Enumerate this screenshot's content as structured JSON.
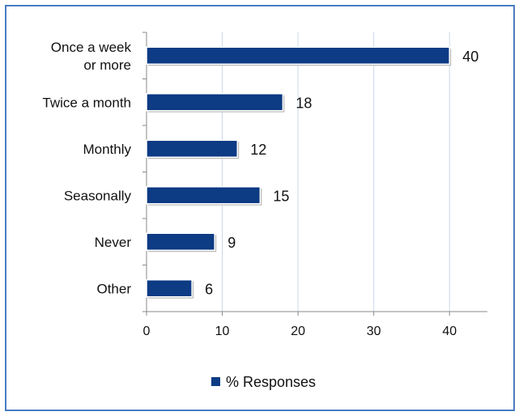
{
  "chart_data": {
    "type": "bar",
    "orientation": "horizontal",
    "categories": [
      [
        "Once a week",
        "or more"
      ],
      [
        "Twice a month"
      ],
      [
        "Monthly"
      ],
      [
        "Seasonally"
      ],
      [
        "Never"
      ],
      [
        "Other"
      ]
    ],
    "series": [
      {
        "name": "% Responses",
        "values": [
          40,
          18,
          12,
          15,
          9,
          6
        ],
        "color": "#0d3b84"
      }
    ],
    "xlim": [
      0,
      45
    ],
    "xticks": [
      "0",
      "10",
      "20",
      "30",
      "40"
    ],
    "grid": "vertical",
    "legend": "bottom-center",
    "colors": {
      "bar": "#0d3b84",
      "grid": "#c8d8ea",
      "axis": "#888888",
      "frame": "#4a7cc0"
    }
  }
}
